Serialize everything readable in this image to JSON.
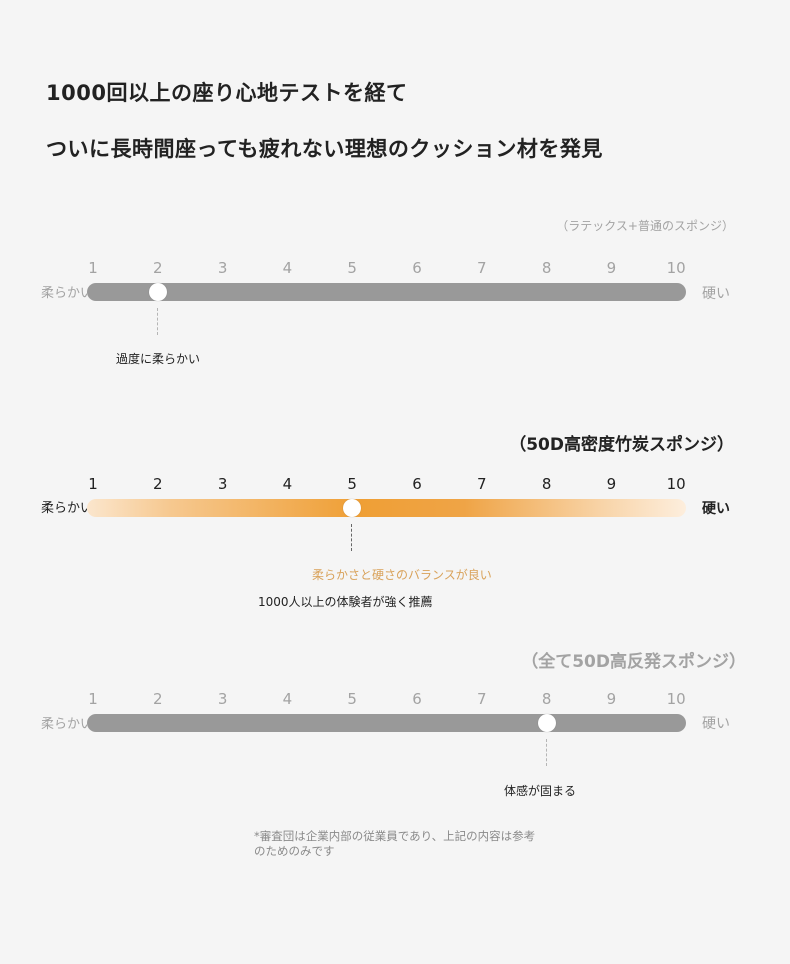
{
  "headline": {
    "line1": "1000回以上の座り心地テストを経て",
    "line2": "ついに長時間座っても疲れない理想のクッション材を発見"
  },
  "scales": [
    {
      "caption": "（ラテックス+普通のスポンジ）",
      "ticks": [
        "1",
        "2",
        "3",
        "4",
        "5",
        "6",
        "7",
        "8",
        "9",
        "10"
      ],
      "left_label": "柔らかい",
      "right_label": "硬い",
      "value": 2,
      "marker_label": "過度に柔らかい",
      "track_color": "#999999"
    },
    {
      "caption": "（50D高密度竹炭スポンジ）",
      "ticks": [
        "1",
        "2",
        "3",
        "4",
        "5",
        "6",
        "7",
        "8",
        "9",
        "10"
      ],
      "left_label": "柔らかい",
      "right_label": "硬い",
      "value": 5,
      "marker_label_accent": "柔らかさと硬さのバランスが良い",
      "marker_label": "1000人以上の体験者が強く推薦",
      "accent_color": "#d9a25a"
    },
    {
      "caption": "（全て50D高反発スポンジ）",
      "ticks": [
        "1",
        "2",
        "3",
        "4",
        "5",
        "6",
        "7",
        "8",
        "9",
        "10"
      ],
      "left_label": "柔らかい",
      "right_label": "硬い",
      "value": 8,
      "marker_label": "体感が固まる",
      "track_color": "#999999"
    }
  ],
  "footnote": "*審査団は企業内部の従業員であり、上記の内容は参考のためのみです"
}
